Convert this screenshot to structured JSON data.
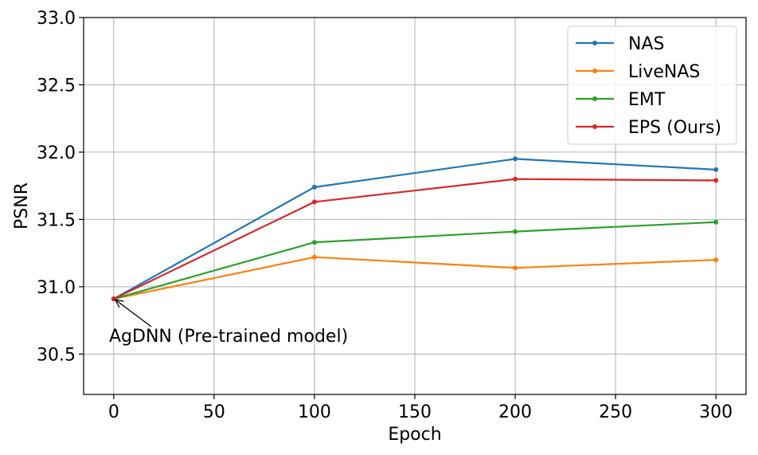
{
  "chart_data": {
    "type": "line",
    "title": "",
    "xlabel": "Epoch",
    "ylabel": "PSNR",
    "xlim": [
      -15,
      315
    ],
    "ylim": [
      30.2,
      33.0
    ],
    "xticks": [
      0,
      50,
      100,
      150,
      200,
      250,
      300
    ],
    "yticks": [
      30.5,
      31.0,
      31.5,
      32.0,
      32.5,
      33.0
    ],
    "xtick_labels": [
      "0",
      "50",
      "100",
      "150",
      "200",
      "250",
      "300"
    ],
    "ytick_labels": [
      "30.5",
      "31.0",
      "31.5",
      "32.0",
      "32.5",
      "33.0"
    ],
    "grid": true,
    "legend_position": "top-right",
    "x": [
      0,
      100,
      200,
      300
    ],
    "series": [
      {
        "name": "NAS",
        "color": "#1f77b4",
        "values": [
          30.91,
          31.74,
          31.95,
          31.87
        ]
      },
      {
        "name": "LiveNAS",
        "color": "#ff7f0e",
        "values": [
          30.91,
          31.22,
          31.14,
          31.2
        ]
      },
      {
        "name": "EMT",
        "color": "#2ca02c",
        "values": [
          30.91,
          31.33,
          31.41,
          31.48
        ]
      },
      {
        "name": "EPS (Ours)",
        "color": "#d62728",
        "values": [
          30.91,
          31.63,
          31.8,
          31.79
        ]
      }
    ],
    "annotation": {
      "text": "AgDNN (Pre-trained model)",
      "x": 0,
      "y": 30.91
    }
  }
}
